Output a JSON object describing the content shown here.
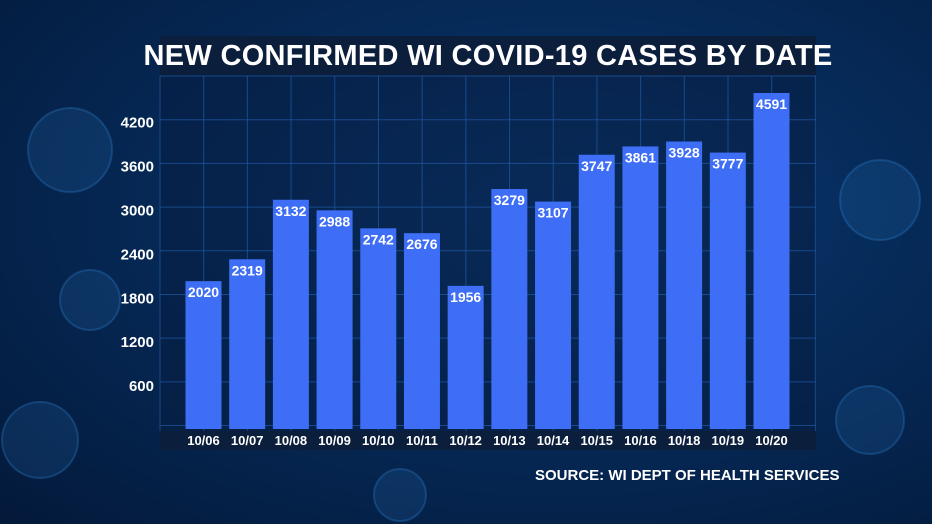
{
  "chart_data": {
    "type": "bar",
    "title": "NEW CONFIRMED WI COVID-19 CASES BY DATE",
    "categories": [
      "10/06",
      "10/07",
      "10/08",
      "10/09",
      "10/10",
      "10/11",
      "10/12",
      "10/13",
      "10/14",
      "10/15",
      "10/16",
      "10/18",
      "10/19",
      "10/20"
    ],
    "values": [
      2020,
      2319,
      3132,
      2988,
      2742,
      2676,
      1956,
      3279,
      3107,
      3747,
      3861,
      3928,
      3777,
      4591
    ],
    "yticks": [
      600,
      1200,
      1800,
      2400,
      3000,
      3600,
      4200
    ],
    "ylim": [
      0,
      4591
    ],
    "grid": true,
    "bar_color": "#3d6ef5",
    "xlabel": "",
    "ylabel": ""
  },
  "source": "SOURCE: WI DEPT OF HEALTH SERVICES",
  "colors": {
    "background": "#062a58",
    "title_bar": "#0b1e3c",
    "text": "#ffffff",
    "grid": "#1f5aa6"
  }
}
